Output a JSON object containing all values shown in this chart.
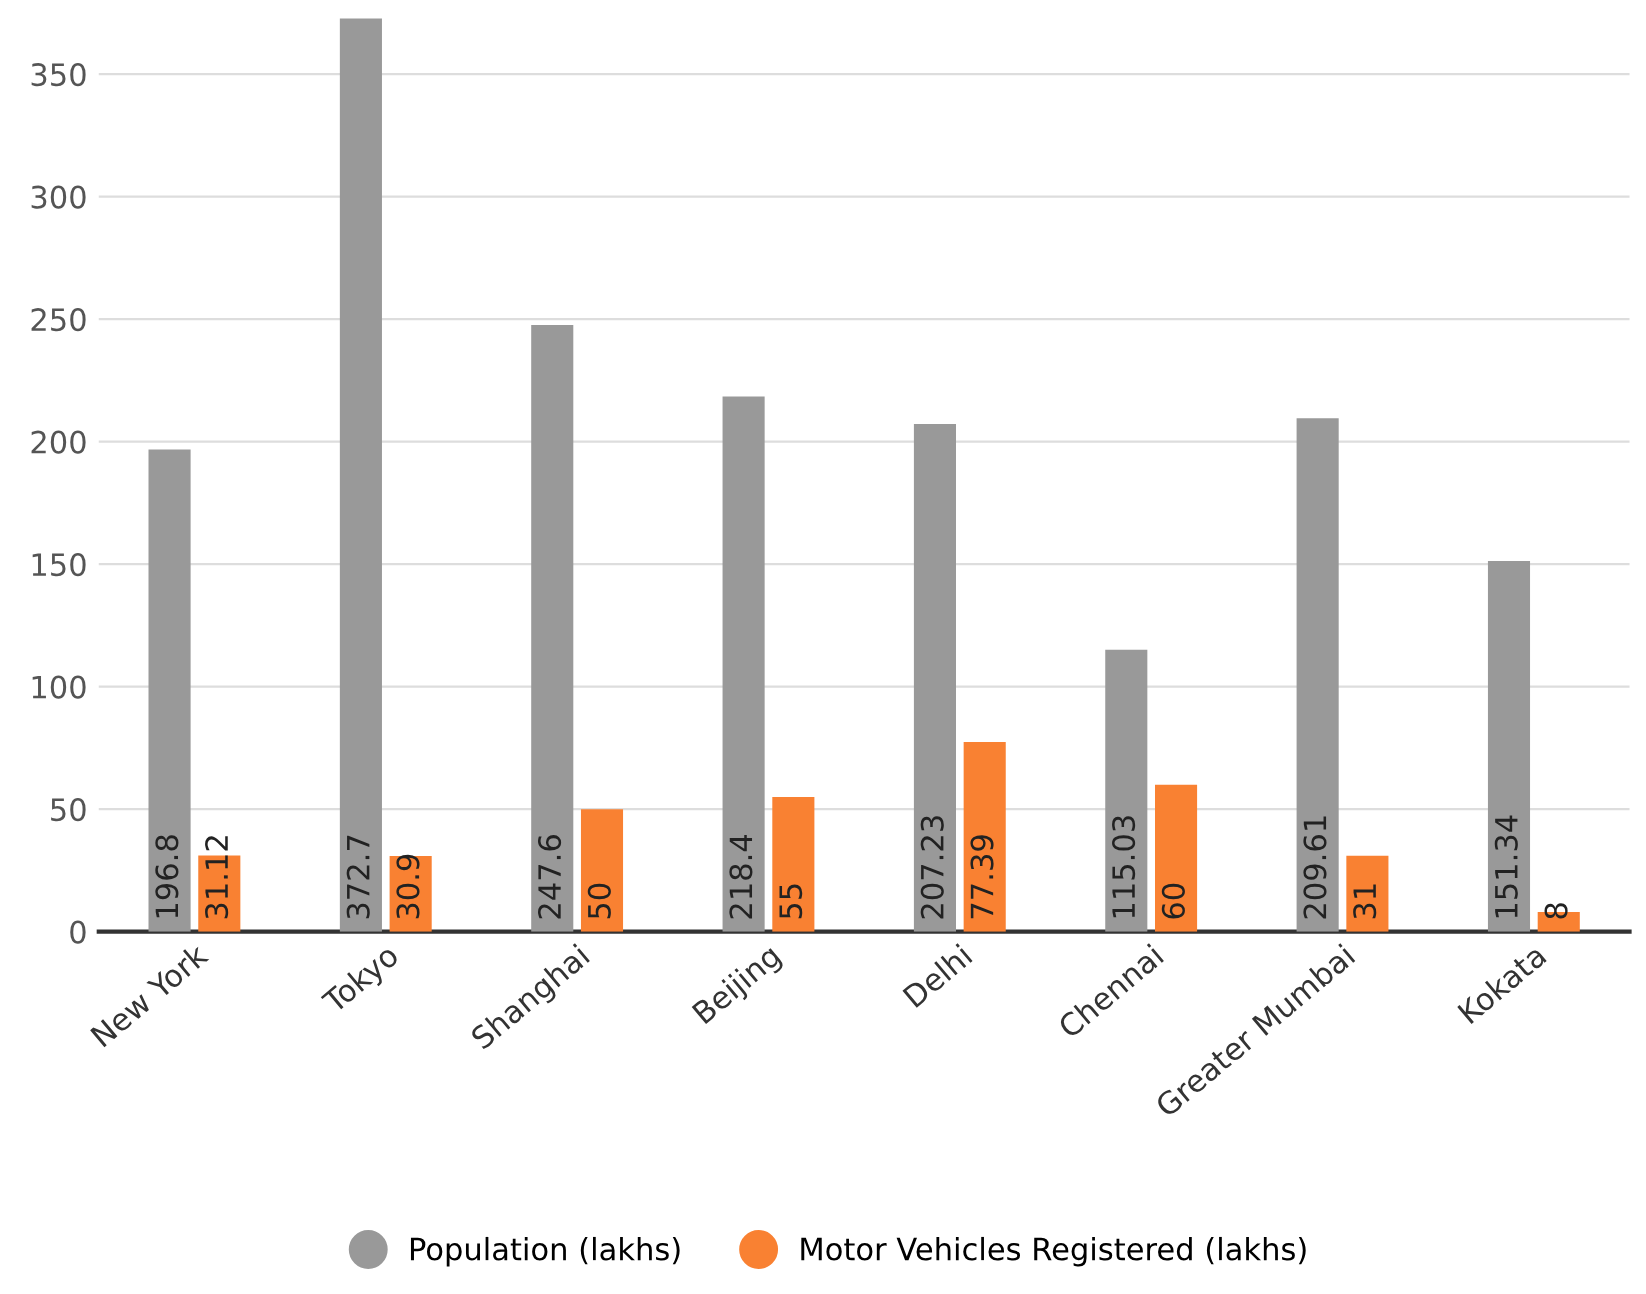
{
  "chart_data": {
    "type": "bar",
    "categories": [
      "New York",
      "Tokyo",
      "Shanghai",
      "Beijing",
      "Delhi",
      "Chennai",
      "Greater Mumbai",
      "Kokata"
    ],
    "series": [
      {
        "name": "Population (lakhs)",
        "color": "#999999",
        "values": [
          196.8,
          372.7,
          247.6,
          218.4,
          207.23,
          115.03,
          209.61,
          151.34
        ]
      },
      {
        "name": "Motor Vehicles Registered (lakhs)",
        "color": "#f98132",
        "values": [
          31.12,
          30.9,
          50,
          55,
          77.39,
          60,
          31,
          8
        ]
      }
    ],
    "ylim": [
      0,
      375
    ],
    "yticks": [
      0,
      50,
      100,
      150,
      200,
      250,
      300,
      350
    ],
    "grid": "y",
    "legend": "bottom",
    "data_labels": true
  }
}
